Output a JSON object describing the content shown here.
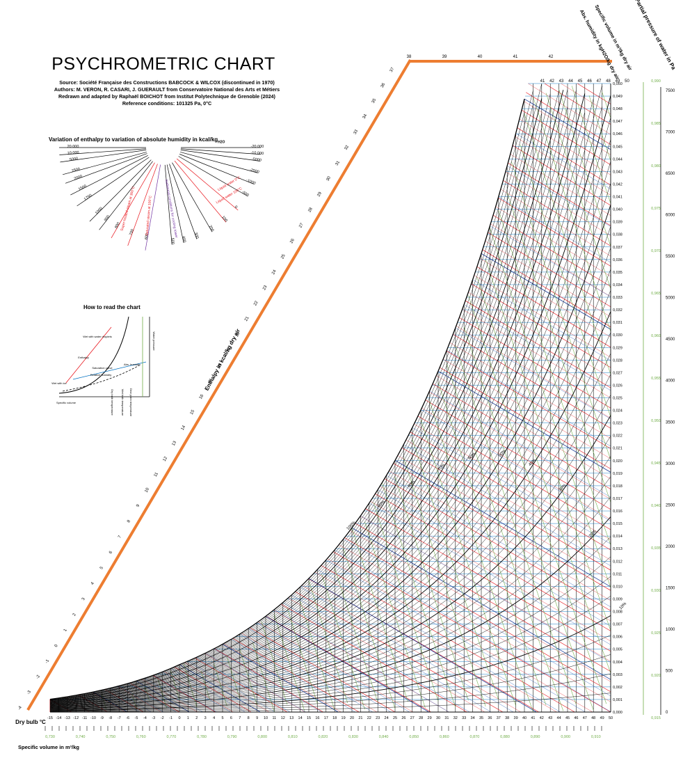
{
  "header": {
    "title": "PSYCHROMETRIC CHART",
    "credits": [
      "Source: Société Française des Constructions BABCOCK & WILCOX (discontinued in 1970)",
      "Authors: M. VERON, R. CASARI, J. GUERAULT from Conservatoire National des Arts et Métiers",
      "Redrawn and adapted by Raphaël BOICHOT from Institut Polytechnique de Grenoble (2024)",
      "Reference conditions: 101325 Pa, 0°C"
    ]
  },
  "fan": {
    "title": "Variation of enthalpy to variation of absolute humidity in kcal/kg",
    "subscript": "H2O",
    "left_labels": [
      "20 000",
      "10 000",
      "5000",
      "2500",
      "2000",
      "1500",
      "1750",
      "1000",
      "900",
      "800",
      "700",
      "600"
    ],
    "right_labels": [
      "-20 000",
      "-10 000",
      "-5000",
      "-2500",
      "-1000",
      "-500",
      "0",
      "100",
      "200",
      "300",
      "400",
      "500"
    ],
    "special_lines": [
      {
        "label": "Super-heated steam at 300°C",
        "color": "#e8141b"
      },
      {
        "label": "Saturated steam at 100°C",
        "color": "#e8141b"
      },
      {
        "label": "Isothermal conditions for cooling tower",
        "color": "#7030a0"
      },
      {
        "label": "Liquid water 0°C",
        "color": "#e8141b"
      },
      {
        "label": "Liquid water 100°C",
        "color": "#e8141b"
      }
    ]
  },
  "howto": {
    "title": "How to read the chart",
    "labels": [
      "Wet with water droplets",
      "Wet with ice",
      "Saturation curve",
      "Water pressure",
      "Relative humidity",
      "Specific volume",
      "Enthalpy",
      "Dry bulb temperature",
      "Wet bulb temperature",
      "Dew point temperature",
      "Abs. humidity"
    ]
  },
  "chart_data": {
    "type": "line",
    "title": "",
    "xlabel": "Dry bulb °C",
    "ylabel_right": "Abs. humidity in kgH2O/kg dry air",
    "enthalpy_label": "Enthalpy in kcal/kg dry air",
    "specific_volume_label": "Specific volume in m³/kg",
    "specific_volume_top_label": "Specific volume in m³/kg dry air",
    "pressure_label": "Partial pressure of water in Pa",
    "xlim": [
      -15,
      50
    ],
    "ylim": [
      0,
      0.05
    ],
    "dry_bulb_ticks": [
      -15,
      -14,
      -13,
      -12,
      -11,
      -10,
      -9,
      -8,
      -7,
      -6,
      -5,
      -4,
      -3,
      -2,
      -1,
      0,
      1,
      2,
      3,
      4,
      5,
      6,
      7,
      8,
      9,
      10,
      11,
      12,
      13,
      14,
      15,
      16,
      17,
      18,
      19,
      20,
      21,
      22,
      23,
      24,
      25,
      26,
      27,
      28,
      29,
      30,
      31,
      32,
      33,
      34,
      35,
      36,
      37,
      38,
      39,
      40,
      41,
      42,
      43,
      44,
      45,
      46,
      47,
      48,
      49,
      50
    ],
    "humidity_ticks": [
      "0,000",
      "0,001",
      "0,002",
      "0,003",
      "0,004",
      "0,005",
      "0,006",
      "0,007",
      "0,008",
      "0,009",
      "0,010",
      "0,011",
      "0,012",
      "0,013",
      "0,014",
      "0,015",
      "0,016",
      "0,017",
      "0,018",
      "0,019",
      "0,020",
      "0,021",
      "0,022",
      "0,023",
      "0,024",
      "0,025",
      "0,026",
      "0,027",
      "0,028",
      "0,029",
      "0,030",
      "0,031",
      "0,032",
      "0,033",
      "0,034",
      "0,035",
      "0,036",
      "0,037",
      "0,038",
      "0,039",
      "0,040",
      "0,041",
      "0,042",
      "0,043",
      "0,044",
      "0,045",
      "0,046",
      "0,047",
      "0,048",
      "0,049",
      "0,050"
    ],
    "pressure_ticks": [
      "0",
      "500",
      "1000",
      "1500",
      "2000",
      "2500",
      "3000",
      "3500",
      "4000",
      "4500",
      "5000",
      "5500",
      "6000",
      "6500",
      "7000",
      "7500"
    ],
    "specific_volume_bottom_ticks": [
      "0,730",
      "0,740",
      "0,750",
      "0,760",
      "0,770",
      "0,780",
      "0,790",
      "0,800",
      "0,810",
      "0,820",
      "0,830",
      "0,840",
      "0,850",
      "0,860",
      "0,870",
      "0,880",
      "0,890",
      "0,900",
      "0,910"
    ],
    "specific_volume_right_ticks": [
      "0,915",
      "0,920",
      "0,925",
      "0,930",
      "0,935",
      "0,940",
      "0,945",
      "0,950",
      "0,955",
      "0,960",
      "0,965",
      "0,970",
      "0,975",
      "0,980",
      "0,985",
      "0,990"
    ],
    "enthalpy_ticks": [
      -4,
      -3,
      -2,
      -1,
      0,
      1,
      2,
      3,
      4,
      5,
      6,
      7,
      8,
      9,
      10,
      11,
      12,
      13,
      14,
      15,
      16,
      17,
      18,
      19,
      20,
      21,
      22,
      23,
      24,
      25,
      26,
      27,
      28,
      29,
      30,
      31,
      32,
      33,
      34,
      35,
      36,
      37
    ],
    "enthalpy_top_ticks": [
      38,
      39,
      40,
      41,
      42
    ],
    "wet_bulb_top_ticks": [
      41,
      42,
      43,
      44,
      45,
      46,
      47,
      48,
      49,
      50
    ],
    "relative_humidity_labels": [
      "100%",
      "90%",
      "80%",
      "70%",
      "60%",
      "50%",
      "40%",
      "30%",
      "20%",
      "10%"
    ],
    "wet_bulb_labels": [
      "5",
      "10",
      "15",
      "20",
      "25",
      "30",
      "35",
      "40"
    ],
    "colors": {
      "enthalpy": "#e8141b",
      "volume": "#70ad47",
      "humidity": "#0070c0",
      "wetbulb": "#4472c4",
      "black": "#000000",
      "orange": "#ed7d31",
      "purple": "#7030a0"
    }
  }
}
